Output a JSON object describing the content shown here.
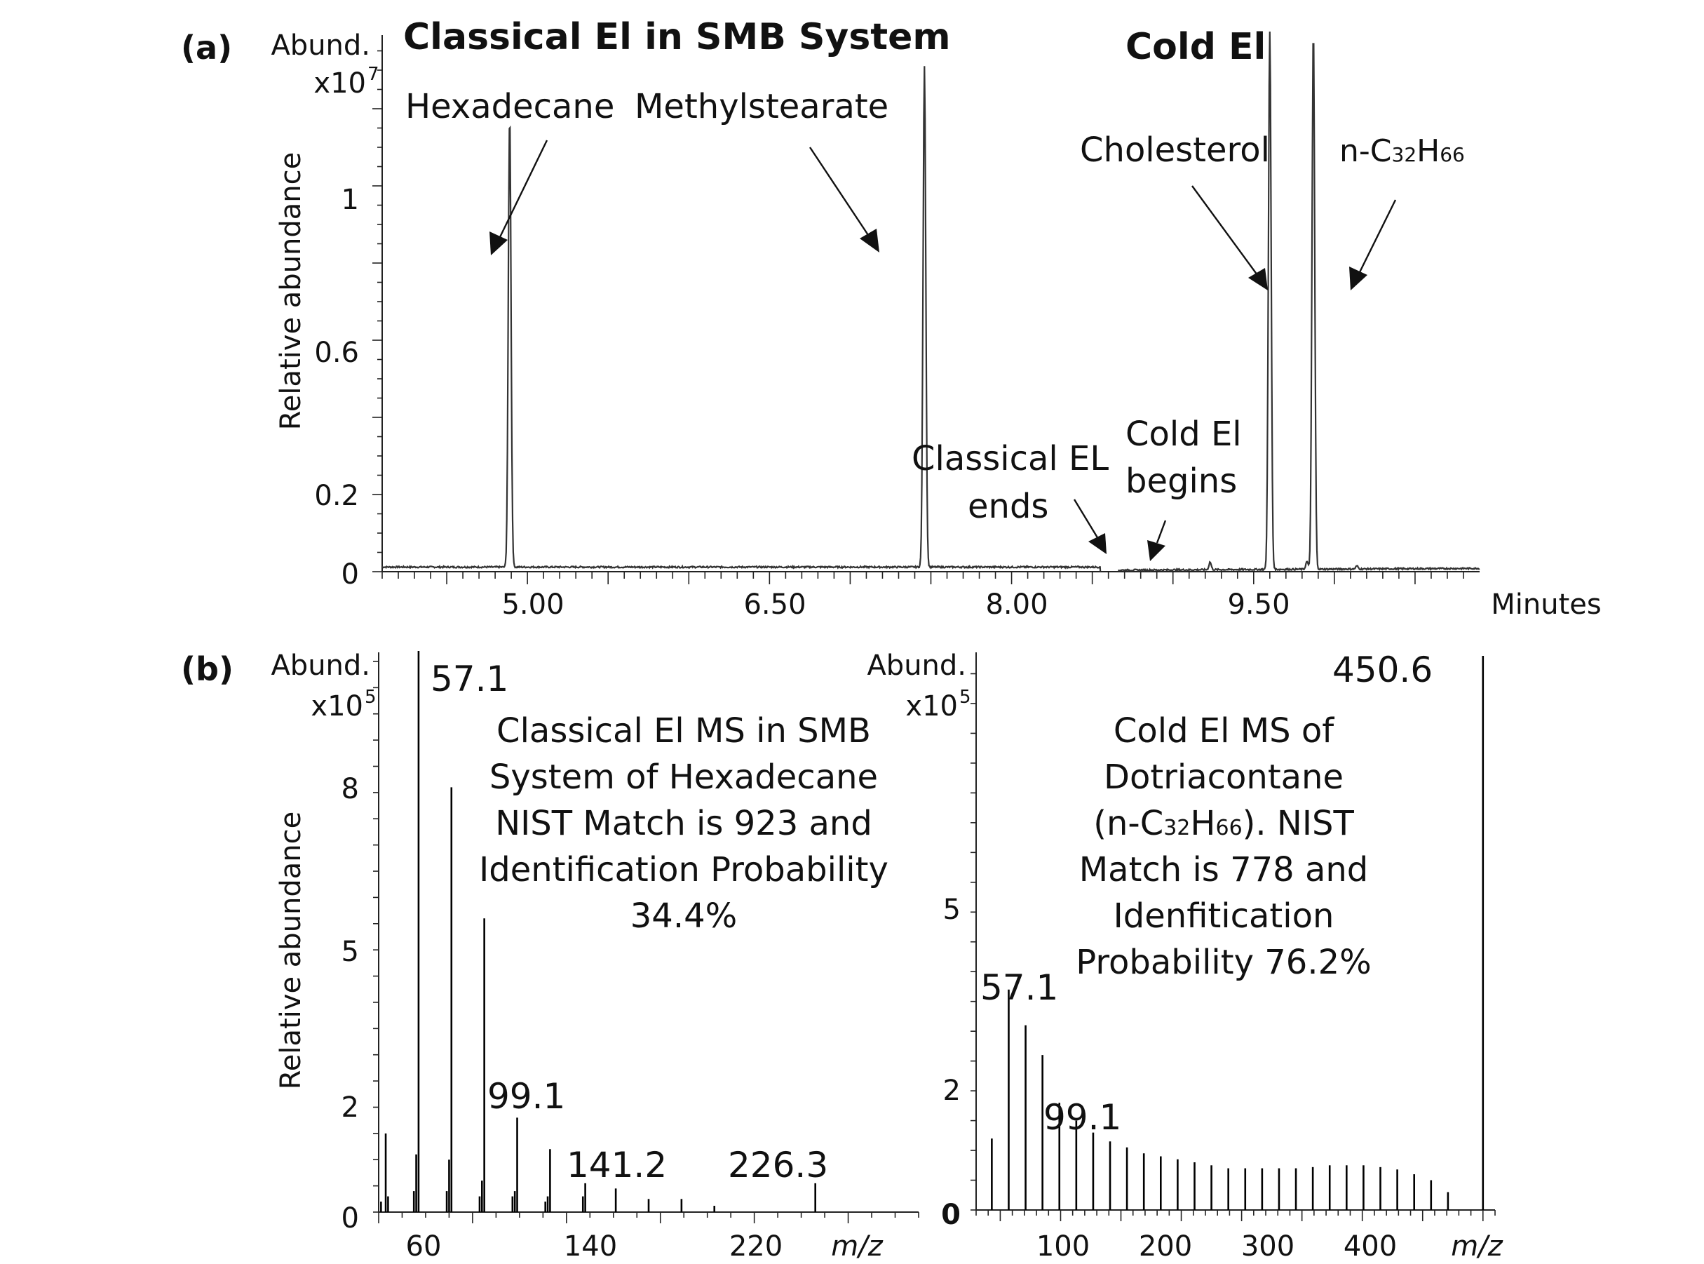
{
  "chart_data": [
    {
      "panel": "(a)",
      "type": "line",
      "title": "Classical El in SMB System",
      "title2": "Cold El",
      "ylabel": "Relative abundance",
      "y_unit_line1": "Abund.",
      "y_unit_line2": "x10",
      "y_unit_exp": "7",
      "xlabel": "Minutes",
      "x_ticks": [
        "5.00",
        "6.50",
        "8.00",
        "9.50"
      ],
      "y_ticks": [
        "0",
        "0.2",
        "0.6",
        "1"
      ],
      "xlim": [
        4.1,
        10.9
      ],
      "ylim": [
        0,
        1.4
      ],
      "peaks": [
        {
          "x": 4.89,
          "y": 1.17,
          "label": "Hexadecane"
        },
        {
          "x": 7.46,
          "y": 1.3,
          "label": "Methylstearate"
        },
        {
          "x": 9.6,
          "y": 1.4,
          "label": "Cholesterol"
        },
        {
          "x": 9.87,
          "y": 1.4,
          "label": "n-C32H66"
        }
      ],
      "annotations": {
        "classical_end": [
          "Classical EL",
          "ends"
        ],
        "cold_begin": [
          "Cold El",
          "begins"
        ],
        "c32_label": {
          "prefix": "n-C",
          "sub1": "32",
          "mid": "H",
          "sub2": "66"
        }
      }
    },
    {
      "panel": "(b)",
      "type": "bar",
      "title": "Classical El MS in SMB System of Hexadecane NIST Match is 923 and Identification Probability 34.4%",
      "title_lines": [
        "Classical El MS in SMB",
        "System of Hexadecane",
        "NIST Match is 923 and",
        "Identification Probability",
        "34.4%"
      ],
      "ylabel": "Relative abundance",
      "y_unit_line1": "Abund.",
      "y_unit_line2": "x10",
      "y_unit_exp": "5",
      "xlabel": "m/z",
      "x_ticks": [
        "60",
        "140",
        "220"
      ],
      "y_ticks": [
        "0",
        "2",
        "5",
        "8"
      ],
      "xlim": [
        40,
        270
      ],
      "ylim": [
        0,
        10.7
      ],
      "x": [
        41,
        43,
        44,
        55,
        56,
        57,
        69,
        70,
        71,
        83,
        84,
        85,
        97,
        98,
        99,
        111,
        112,
        113,
        127,
        128,
        141,
        155,
        169,
        183,
        226
      ],
      "values": [
        0.2,
        1.5,
        0.3,
        0.4,
        1.1,
        10.7,
        0.4,
        1.0,
        8.1,
        0.3,
        0.6,
        5.6,
        0.3,
        0.4,
        1.8,
        0.2,
        0.3,
        1.2,
        0.3,
        0.55,
        0.45,
        0.25,
        0.25,
        0.12,
        0.55
      ],
      "peak_labels": [
        {
          "mz": 57,
          "text": "57.1"
        },
        {
          "mz": 99,
          "text": "99.1"
        },
        {
          "mz": 141,
          "text": "141.2"
        },
        {
          "mz": 226,
          "text": "226.3"
        }
      ]
    },
    {
      "panel": "(b)",
      "type": "bar",
      "title": "Cold El MS of Dotriacontane (n-C32H66). NIST Match is 778 and Idenfitication Probability 76.2%",
      "title_lines": [
        "Cold El MS of",
        "Dotriacontane",
        "(n-C32H66). NIST",
        "Match is 778 and",
        "Idenfitication",
        "Probability 76.2%"
      ],
      "formula": {
        "open": "(n-C",
        "sub1": "32",
        "mid": "H",
        "sub2": "66",
        "close": "). NIST"
      },
      "y_unit_line1": "Abund.",
      "y_unit_line2": "x10",
      "y_unit_exp": "5",
      "xlabel": "m/z",
      "x_ticks": [
        "100",
        "200",
        "300",
        "400"
      ],
      "y_ticks": [
        "0",
        "2",
        "5"
      ],
      "xlim": [
        30,
        460
      ],
      "ylim": [
        0,
        9.3
      ],
      "x": [
        43,
        57,
        71,
        85,
        99,
        113,
        127,
        141,
        155,
        169,
        183,
        197,
        211,
        225,
        239,
        253,
        267,
        281,
        295,
        309,
        323,
        337,
        351,
        365,
        379,
        393,
        407,
        421,
        450
      ],
      "values": [
        1.2,
        3.7,
        3.1,
        2.6,
        1.8,
        1.5,
        1.3,
        1.15,
        1.05,
        0.95,
        0.9,
        0.85,
        0.8,
        0.75,
        0.7,
        0.7,
        0.7,
        0.7,
        0.7,
        0.72,
        0.75,
        0.75,
        0.75,
        0.72,
        0.68,
        0.6,
        0.5,
        0.3,
        9.3
      ],
      "peak_labels": [
        {
          "mz": 57,
          "text": "57.1"
        },
        {
          "mz": 99,
          "text": "99.1"
        },
        {
          "mz": 450,
          "text": "450.6"
        }
      ]
    }
  ]
}
